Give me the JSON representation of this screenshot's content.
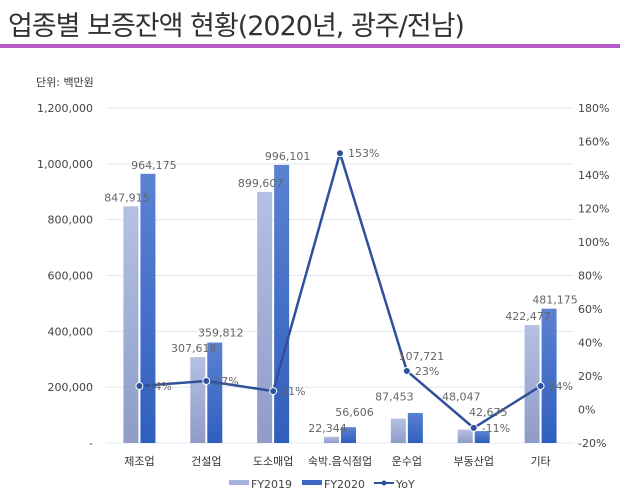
{
  "title": "업종별 보증잔액 현황(2020년, 광주/전남)",
  "colors": {
    "accent_rule": "#b45bc8",
    "fy2019": "#a3b1dc",
    "fy2020": "#3b68c4",
    "yoy": "#2f519b"
  },
  "chart_data": {
    "type": "bar",
    "title": "업종별 보증잔액 현황(2020년, 광주/전남)",
    "unit_label": "단위: 백만원",
    "categories": [
      "제조업",
      "건설업",
      "도소매업",
      "숙박.음식점업",
      "운수업",
      "부동산업",
      "기타"
    ],
    "series": [
      {
        "name": "FY2019",
        "type": "bar",
        "axis": "left",
        "values": [
          847915,
          307618,
          899607,
          22344,
          87453,
          48047,
          422477
        ],
        "labels": [
          "847,915",
          "307,618",
          "899,607",
          "22,344",
          "87,453",
          "48,047",
          "422,477"
        ]
      },
      {
        "name": "FY2020",
        "type": "bar",
        "axis": "left",
        "values": [
          964175,
          359812,
          996101,
          56606,
          107721,
          42675,
          481175
        ],
        "labels": [
          "964,175",
          "359,812",
          "996,101",
          "56,606",
          "107,721",
          "42,675",
          "481,175"
        ]
      },
      {
        "name": "YoY",
        "type": "line",
        "axis": "right",
        "values": [
          14,
          17,
          11,
          153,
          23,
          -11,
          14
        ],
        "labels": [
          "14%",
          "17%",
          "11%",
          "153%",
          "23%",
          "-11%",
          "14%"
        ]
      }
    ],
    "y_left": {
      "range": [
        0,
        1200000
      ],
      "ticks": [
        "-",
        "200,000",
        "400,000",
        "600,000",
        "800,000",
        "1,000,000",
        "1,200,000"
      ]
    },
    "y_right": {
      "range": [
        -20,
        180
      ],
      "ticks": [
        "-20%",
        "0%",
        "20%",
        "40%",
        "60%",
        "80%",
        "100%",
        "120%",
        "140%",
        "160%",
        "180%"
      ]
    },
    "grid": true,
    "legend": "bottom"
  }
}
